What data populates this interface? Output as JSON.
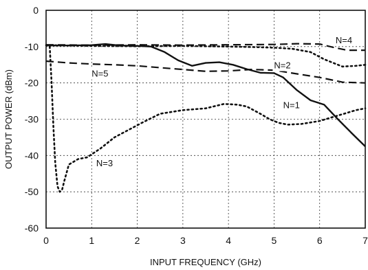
{
  "chart_data": {
    "type": "line",
    "xlabel": "INPUT FREQUENCY (GHz)",
    "ylabel": "OUTPUT POWER (dBm)",
    "xlim": [
      0,
      7
    ],
    "ylim": [
      -60,
      0
    ],
    "xticks": [
      0,
      1,
      2,
      3,
      4,
      5,
      6,
      7
    ],
    "yticks": [
      0,
      -10,
      -20,
      -30,
      -40,
      -50,
      -60
    ],
    "grid": true,
    "series": [
      {
        "name": "N=1",
        "style": "solid",
        "x": [
          0.0,
          0.5,
          1.0,
          1.3,
          1.6,
          2.0,
          2.3,
          2.6,
          2.9,
          3.2,
          3.5,
          3.8,
          4.1,
          4.4,
          4.7,
          5.0,
          5.2,
          5.5,
          5.8,
          6.1,
          6.4,
          6.7,
          7.0
        ],
        "y": [
          -9.7,
          -9.7,
          -9.6,
          -9.3,
          -9.7,
          -9.8,
          -10.0,
          -11.5,
          -13.8,
          -15.3,
          -14.5,
          -14.3,
          -15.0,
          -16.2,
          -17.2,
          -17.3,
          -18.5,
          -22.0,
          -24.8,
          -26.0,
          -30.0,
          -33.8,
          -37.5
        ]
      },
      {
        "name": "N=2",
        "style": "dotted",
        "x": [
          0.0,
          1.0,
          2.0,
          3.0,
          4.0,
          4.5,
          5.0,
          5.4,
          5.8,
          6.1,
          6.5,
          6.8,
          7.0
        ],
        "y": [
          -9.6,
          -9.8,
          -9.9,
          -9.8,
          -10.0,
          -10.1,
          -10.3,
          -10.6,
          -11.5,
          -13.5,
          -15.5,
          -15.3,
          -15.0
        ]
      },
      {
        "name": "N=3",
        "style": "dotted",
        "x": [
          0.08,
          0.12,
          0.16,
          0.2,
          0.25,
          0.3,
          0.35,
          0.4,
          0.5,
          0.7,
          0.9,
          1.2,
          1.5,
          1.8,
          2.1,
          2.5,
          3.0,
          3.5,
          3.9,
          4.2,
          4.4,
          4.7,
          4.9,
          5.1,
          5.3,
          5.6,
          6.0,
          6.4,
          6.8,
          7.0
        ],
        "y": [
          -10.0,
          -20.0,
          -32.0,
          -42.0,
          -48.5,
          -50.0,
          -49.5,
          -47.0,
          -42.5,
          -41.0,
          -40.5,
          -38.0,
          -35.0,
          -33.0,
          -31.0,
          -28.5,
          -27.5,
          -27.0,
          -25.8,
          -26.0,
          -26.5,
          -28.5,
          -30.0,
          -31.0,
          -31.5,
          -31.3,
          -30.5,
          -29.0,
          -27.5,
          -27.0
        ]
      },
      {
        "name": "N=4",
        "style": "dashed",
        "x": [
          0.0,
          1.0,
          2.0,
          3.0,
          4.0,
          5.0,
          5.5,
          6.0,
          6.3,
          6.6,
          7.0
        ],
        "y": [
          -9.5,
          -9.6,
          -9.5,
          -9.6,
          -9.5,
          -9.4,
          -9.2,
          -9.3,
          -10.2,
          -11.0,
          -11.0
        ]
      },
      {
        "name": "N=5",
        "style": "dashed",
        "x": [
          0.0,
          0.5,
          1.0,
          1.5,
          2.0,
          2.5,
          3.0,
          3.5,
          4.0,
          4.5,
          5.0,
          5.5,
          6.0,
          6.5,
          7.0
        ],
        "y": [
          -14.0,
          -14.5,
          -14.8,
          -15.0,
          -15.3,
          -15.8,
          -16.3,
          -16.8,
          -16.7,
          -16.3,
          -16.5,
          -17.5,
          -18.5,
          -19.8,
          -20.0
        ]
      }
    ],
    "annotations": [
      {
        "text": "N=4",
        "x": 6.35,
        "y": -9.1
      },
      {
        "text": "N=2",
        "x": 5.0,
        "y": -16.0
      },
      {
        "text": "N=5",
        "x": 1.0,
        "y": -18.3
      },
      {
        "text": "N=1",
        "x": 5.2,
        "y": -27.0
      },
      {
        "text": "N=3",
        "x": 1.1,
        "y": -43.0
      }
    ]
  }
}
